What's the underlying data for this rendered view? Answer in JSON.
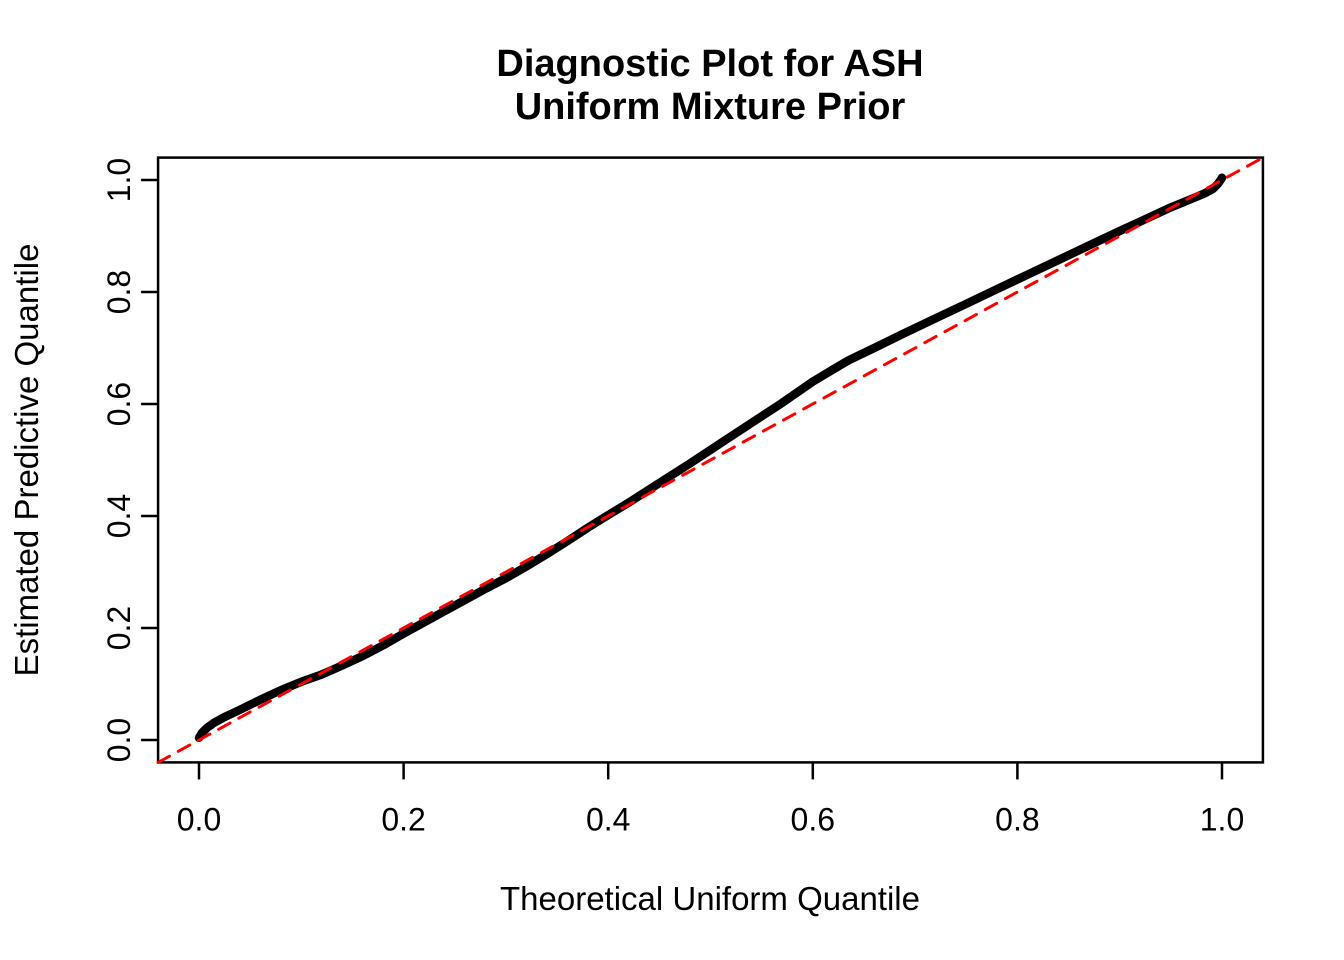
{
  "figure": {
    "title_line1": "Diagnostic Plot for ASH",
    "title_line2": "Uniform Mixture Prior",
    "xlabel": "Theoretical Uniform Quantile",
    "ylabel": "Estimated Predictive Quantile"
  },
  "chart_data": {
    "type": "line",
    "title": "Diagnostic Plot for ASH\nUniform Mixture Prior",
    "xlabel": "Theoretical Uniform Quantile",
    "ylabel": "Estimated Predictive Quantile",
    "xlim": [
      -0.04,
      1.04
    ],
    "ylim": [
      -0.04,
      1.04
    ],
    "grid": false,
    "legend_position": "none",
    "background_color": "#ffffff",
    "axis_color": "#000000",
    "x_tick_values": [
      0.0,
      0.2,
      0.4,
      0.6,
      0.8,
      1.0
    ],
    "x_tick_labels": [
      "0.0",
      "0.2",
      "0.4",
      "0.6",
      "0.8",
      "1.0"
    ],
    "y_tick_values": [
      0.0,
      0.2,
      0.4,
      0.6,
      0.8,
      1.0
    ],
    "y_tick_labels": [
      "0.0",
      "0.2",
      "0.4",
      "0.6",
      "0.8",
      "1.0"
    ],
    "series": [
      {
        "name": "estimated-predictive-quantile-curve",
        "style": "solid",
        "color": "#000000",
        "stroke_width": 8.5,
        "points": [
          [
            0.0,
            0.004
          ],
          [
            0.003,
            0.013
          ],
          [
            0.008,
            0.022
          ],
          [
            0.015,
            0.031
          ],
          [
            0.025,
            0.041
          ],
          [
            0.04,
            0.054
          ],
          [
            0.06,
            0.072
          ],
          [
            0.08,
            0.089
          ],
          [
            0.1,
            0.104
          ],
          [
            0.12,
            0.117
          ],
          [
            0.14,
            0.133
          ],
          [
            0.16,
            0.15
          ],
          [
            0.18,
            0.169
          ],
          [
            0.2,
            0.19
          ],
          [
            0.22,
            0.21
          ],
          [
            0.24,
            0.23
          ],
          [
            0.26,
            0.25
          ],
          [
            0.28,
            0.27
          ],
          [
            0.3,
            0.289
          ],
          [
            0.32,
            0.31
          ],
          [
            0.34,
            0.332
          ],
          [
            0.36,
            0.355
          ],
          [
            0.38,
            0.379
          ],
          [
            0.395,
            0.396
          ],
          [
            0.42,
            0.424
          ],
          [
            0.45,
            0.459
          ],
          [
            0.48,
            0.494
          ],
          [
            0.51,
            0.53
          ],
          [
            0.54,
            0.566
          ],
          [
            0.57,
            0.602
          ],
          [
            0.6,
            0.64
          ],
          [
            0.62,
            0.662
          ],
          [
            0.635,
            0.678
          ],
          [
            0.66,
            0.7
          ],
          [
            0.69,
            0.727
          ],
          [
            0.72,
            0.753
          ],
          [
            0.75,
            0.779
          ],
          [
            0.78,
            0.805
          ],
          [
            0.81,
            0.831
          ],
          [
            0.84,
            0.857
          ],
          [
            0.87,
            0.883
          ],
          [
            0.9,
            0.909
          ],
          [
            0.925,
            0.93
          ],
          [
            0.95,
            0.951
          ],
          [
            0.97,
            0.966
          ],
          [
            0.983,
            0.976
          ],
          [
            0.991,
            0.984
          ],
          [
            0.996,
            0.993
          ],
          [
            0.999,
            1.001
          ],
          [
            1.0,
            1.004
          ]
        ]
      },
      {
        "name": "reference-diagonal-y-equals-x",
        "style": "dashed",
        "color": "#ff0000",
        "stroke_width": 3,
        "dash_pattern": "13 10",
        "points": [
          [
            -0.04,
            -0.04
          ],
          [
            1.04,
            1.04
          ]
        ]
      }
    ]
  }
}
